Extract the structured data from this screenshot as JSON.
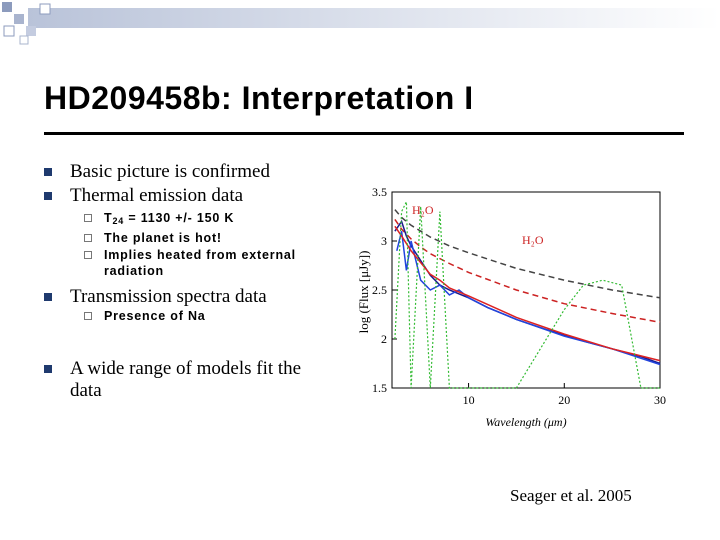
{
  "slide": {
    "title": "HD209458b: Interpretation I",
    "bullets": {
      "b1": "Basic picture is confirmed",
      "b2": "Thermal emission data",
      "b2_sub": {
        "s1_prefix": "T",
        "s1_subscript": "24",
        "s1_rest": " = 1130 +/- 150 K",
        "s2": "The planet is hot!",
        "s3_line1": "Implies heated from external",
        "s3_line2": "radiation"
      },
      "b3": "Transmission spectra data",
      "b3_sub": {
        "s1": "Presence of Na"
      },
      "b4_line1": "A wide range of models fit the",
      "b4_line2": "data"
    },
    "credit": "Seager et al. 2005"
  },
  "figure": {
    "ylabel": "log (Flux [μJy])",
    "xlabel": "Wavelength (μm)",
    "x_ticks": [
      "10",
      "20",
      "30"
    ],
    "y_ticks": [
      "3.5",
      "3",
      "2.5",
      "2",
      "1.5"
    ],
    "label_h2o_left": "H₂O",
    "label_h2o_right": "H₂O"
  },
  "chart_data": {
    "type": "line",
    "xlabel": "Wavelength (μm)",
    "ylabel": "log (Flux [μJy])",
    "xlim": [
      2,
      30
    ],
    "ylim": [
      1.5,
      3.5
    ],
    "annotations": [
      "H₂O",
      "H₂O"
    ],
    "series": [
      {
        "x": [
          2.3,
          3,
          4,
          5,
          6,
          8,
          10,
          15,
          20,
          25,
          30
        ],
        "y": [
          3.32,
          3.24,
          3.16,
          3.1,
          3.04,
          2.95,
          2.88,
          2.72,
          2.6,
          2.5,
          2.42
        ],
        "color": "#444444"
      },
      {
        "x": [
          2.3,
          3,
          4,
          5,
          6,
          8,
          10,
          15,
          20,
          25,
          30
        ],
        "y": [
          3.22,
          3.12,
          3.02,
          2.94,
          2.87,
          2.77,
          2.68,
          2.5,
          2.36,
          2.26,
          2.17
        ],
        "color": "#cc2222"
      },
      {
        "x": [
          2.3,
          3,
          3.5,
          4,
          5,
          6,
          7,
          8,
          10,
          12,
          15,
          18,
          20,
          22,
          25,
          28,
          30
        ],
        "y": [
          3.1,
          3.2,
          3.05,
          2.95,
          2.8,
          2.65,
          2.55,
          2.5,
          2.42,
          2.32,
          2.2,
          2.1,
          2.04,
          1.98,
          1.9,
          1.82,
          1.75
        ],
        "color": "#1a1a8c"
      },
      {
        "x": [
          2.5,
          3,
          3.5,
          4,
          5,
          6,
          7,
          8,
          9,
          10,
          12,
          15,
          20,
          25,
          30
        ],
        "y": [
          2.9,
          3.1,
          2.7,
          3.0,
          2.6,
          2.5,
          2.55,
          2.45,
          2.5,
          2.42,
          2.32,
          2.2,
          2.03,
          1.9,
          1.74
        ],
        "color": "#2244dd"
      },
      {
        "x": [
          2.3,
          3,
          4,
          5,
          6,
          7,
          8,
          10,
          15,
          20,
          25,
          30
        ],
        "y": [
          3.15,
          3.05,
          2.9,
          2.78,
          2.66,
          2.6,
          2.52,
          2.44,
          2.22,
          2.05,
          1.9,
          1.78
        ],
        "color": "#dd2222"
      },
      {
        "x": [
          2.3,
          3,
          3.5,
          4,
          5,
          6,
          7,
          8,
          9,
          10,
          12,
          15,
          20,
          22,
          24,
          26,
          28,
          30
        ],
        "y": [
          2.0,
          3.3,
          3.4,
          1.5,
          3.35,
          1.5,
          3.3,
          1.5,
          1.5,
          1.5,
          1.5,
          1.5,
          2.3,
          2.55,
          2.6,
          2.55,
          1.5,
          1.5
        ],
        "color": "#33bb33",
        "style": "dotted"
      }
    ]
  }
}
